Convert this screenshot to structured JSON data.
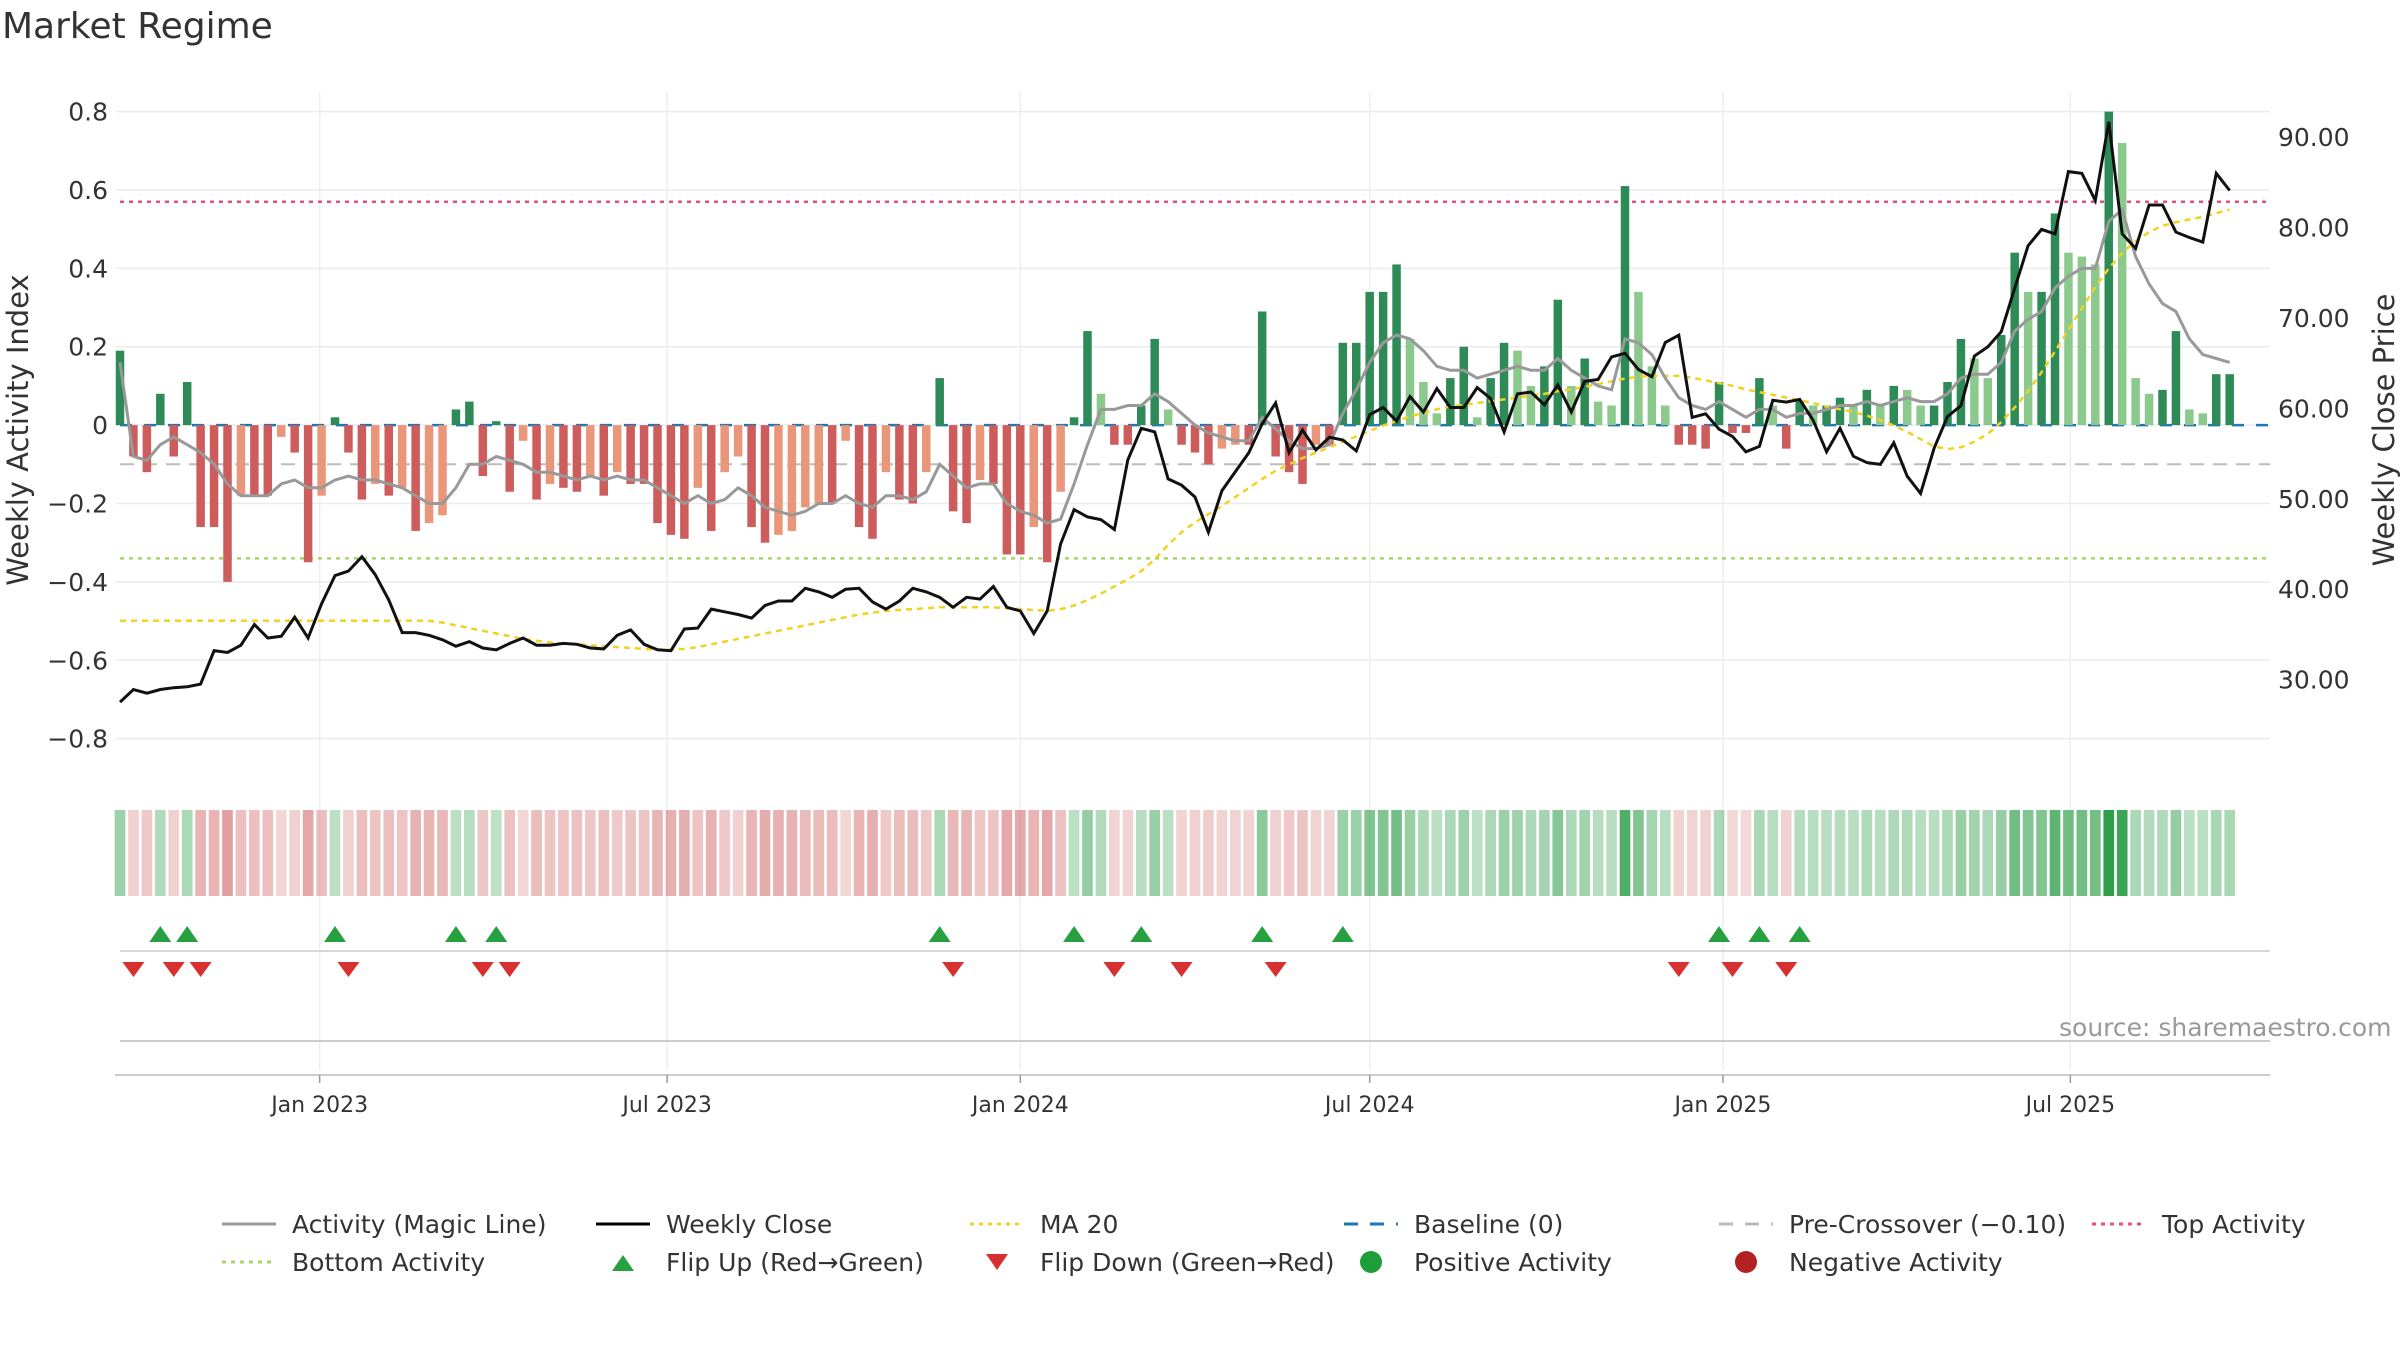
{
  "page": {
    "title": "Market Regime",
    "source_note": "source: sharemaestro.com"
  },
  "chart_data": {
    "type": "bar",
    "title": "Market Regime",
    "left_axis": {
      "label": "Weekly Activity Index",
      "ylim": [
        -0.88,
        0.85
      ],
      "ticks": [
        -0.8,
        -0.6,
        -0.4,
        -0.2,
        0,
        0.2,
        0.4,
        0.6,
        0.8
      ]
    },
    "right_axis": {
      "label": "Weekly Close Price",
      "ylim": [
        20,
        95
      ],
      "ticks": [
        "30.00",
        "40.00",
        "50.00",
        "60.00",
        "70.00",
        "80.00",
        "90.00"
      ]
    },
    "x_axis": {
      "start": "2022-09-19",
      "end": "2025-10-13",
      "tick_labels": [
        "Jan 2023",
        "Jul 2023",
        "Jan 2024",
        "Jul 2024",
        "Jan 2025",
        "Jul 2025"
      ],
      "tick_dates": [
        "2023-01-01",
        "2023-07-01",
        "2024-01-01",
        "2024-07-01",
        "2025-01-01",
        "2025-07-01"
      ]
    },
    "reference_lines": {
      "baseline": 0,
      "pre_crossover": -0.1,
      "top_activity": 0.57,
      "bottom_activity": -0.34
    },
    "activity": [
      0.19,
      -0.08,
      -0.12,
      0.08,
      -0.08,
      0.11,
      -0.26,
      -0.26,
      -0.4,
      -0.18,
      -0.18,
      -0.18,
      -0.03,
      -0.07,
      -0.35,
      -0.18,
      0.02,
      -0.07,
      -0.19,
      -0.15,
      -0.18,
      -0.16,
      -0.27,
      -0.25,
      -0.23,
      0.04,
      0.06,
      -0.13,
      0.01,
      -0.17,
      -0.04,
      -0.19,
      -0.15,
      -0.16,
      -0.17,
      -0.13,
      -0.18,
      -0.12,
      -0.15,
      -0.15,
      -0.25,
      -0.28,
      -0.29,
      -0.16,
      -0.27,
      -0.12,
      -0.08,
      -0.26,
      -0.3,
      -0.28,
      -0.27,
      -0.21,
      -0.2,
      -0.2,
      -0.04,
      -0.26,
      -0.29,
      -0.12,
      -0.19,
      -0.2,
      -0.12,
      0.12,
      -0.22,
      -0.25,
      -0.14,
      -0.15,
      -0.33,
      -0.33,
      -0.26,
      -0.35,
      -0.17,
      0.02,
      0.24,
      0.08,
      -0.05,
      -0.05,
      0.05,
      0.22,
      0.04,
      -0.05,
      -0.07,
      -0.1,
      -0.06,
      -0.05,
      -0.05,
      0.29,
      -0.08,
      -0.12,
      -0.15,
      -0.05,
      -0.05,
      0.21,
      0.21,
      0.34,
      0.34,
      0.41,
      0.22,
      0.11,
      0.03,
      0.12,
      0.2,
      0.02,
      0.12,
      0.21,
      0.19,
      0.1,
      0.15,
      0.32,
      0.1,
      0.17,
      0.06,
      0.05,
      0.61,
      0.34,
      0.15,
      0.05,
      -0.05,
      -0.05,
      -0.06,
      0.11,
      -0.02,
      -0.02,
      0.12,
      0.05,
      -0.06,
      0.06,
      0.05,
      0.05,
      0.07,
      0.05,
      0.09,
      0.05,
      0.1,
      0.09,
      0.05,
      0.05,
      0.11,
      0.22,
      0.17,
      0.12,
      0.23,
      0.44,
      0.34,
      0.34,
      0.54,
      0.44,
      0.43,
      0.41,
      0.8,
      0.72,
      0.12,
      0.08,
      0.09,
      0.24,
      0.04,
      0.03,
      0.13,
      0.13
    ],
    "weekly_close": [
      27.5,
      28.9,
      28.5,
      28.9,
      29.1,
      29.2,
      29.5,
      33.2,
      33,
      33.8,
      36.1,
      34.6,
      34.8,
      36.9,
      34.6,
      38.4,
      41.5,
      42,
      43.6,
      41.6,
      38.8,
      35.2,
      35.2,
      34.9,
      34.4,
      33.7,
      34.2,
      33.5,
      33.3,
      34,
      34.6,
      33.8,
      33.8,
      34,
      33.9,
      33.5,
      33.4,
      34.9,
      35.5,
      33.9,
      33.3,
      33.2,
      35.6,
      35.7,
      37.8,
      37.5,
      37.2,
      36.8,
      38.2,
      38.7,
      38.7,
      40.1,
      39.7,
      39.1,
      40,
      40.1,
      38.6,
      37.8,
      38.7,
      40.1,
      39.7,
      39.1,
      38,
      39.1,
      38.9,
      40.3,
      38,
      37.6,
      35.1,
      37.6,
      45,
      48.8,
      48,
      47.7,
      46.6,
      54.3,
      57.8,
      57.4,
      52.2,
      51.5,
      50.2,
      46.3,
      50.9,
      53,
      55.1,
      58.3,
      60.6,
      55.1,
      57.6,
      55.4,
      56.8,
      56.5,
      55.3,
      59.3,
      60.1,
      58.6,
      61.3,
      59.6,
      62.2,
      60.1,
      60.1,
      62.3,
      61.1,
      57.4,
      61.6,
      61.8,
      60.4,
      62.6,
      59.6,
      63,
      63.2,
      65.7,
      66.1,
      64.3,
      63.5,
      67.3,
      68.1,
      59,
      59.4,
      57.7,
      56.9,
      55.2,
      55.8,
      60.9,
      60.7,
      61,
      58.7,
      55.2,
      57.8,
      54.7,
      54,
      53.8,
      56.2,
      52.5,
      50.6,
      55.6,
      59.1,
      60.3,
      65.8,
      66.8,
      68.5,
      73.3,
      78,
      79.8,
      79.3,
      86.2,
      86,
      83,
      91.7,
      79.3,
      77.7,
      82.5,
      82.5,
      79.5,
      78.9,
      78.4,
      86,
      84.1
    ],
    "magic_line": [
      0.16,
      -0.08,
      -0.09,
      -0.05,
      -0.03,
      -0.05,
      -0.07,
      -0.1,
      -0.15,
      -0.18,
      -0.18,
      -0.18,
      -0.15,
      -0.14,
      -0.16,
      -0.16,
      -0.14,
      -0.13,
      -0.14,
      -0.14,
      -0.15,
      -0.16,
      -0.18,
      -0.2,
      -0.2,
      -0.16,
      -0.1,
      -0.1,
      -0.08,
      -0.09,
      -0.1,
      -0.12,
      -0.12,
      -0.13,
      -0.14,
      -0.13,
      -0.14,
      -0.13,
      -0.14,
      -0.14,
      -0.16,
      -0.18,
      -0.2,
      -0.18,
      -0.2,
      -0.19,
      -0.16,
      -0.18,
      -0.21,
      -0.22,
      -0.23,
      -0.22,
      -0.2,
      -0.2,
      -0.18,
      -0.2,
      -0.21,
      -0.18,
      -0.18,
      -0.19,
      -0.17,
      -0.1,
      -0.13,
      -0.16,
      -0.15,
      -0.15,
      -0.2,
      -0.22,
      -0.23,
      -0.25,
      -0.24,
      -0.15,
      -0.05,
      0.04,
      0.04,
      0.05,
      0.05,
      0.08,
      0.06,
      0.03,
      0,
      -0.02,
      -0.03,
      -0.04,
      -0.04,
      0.02,
      -0.01,
      -0.04,
      -0.06,
      -0.06,
      -0.05,
      0.03,
      0.09,
      0.16,
      0.21,
      0.23,
      0.22,
      0.19,
      0.15,
      0.14,
      0.14,
      0.12,
      0.13,
      0.14,
      0.15,
      0.14,
      0.14,
      0.17,
      0.14,
      0.12,
      0.1,
      0.09,
      0.22,
      0.21,
      0.18,
      0.12,
      0.07,
      0.05,
      0.04,
      0.06,
      0.04,
      0.02,
      0.04,
      0.04,
      0.02,
      0.03,
      0.03,
      0.04,
      0.05,
      0.05,
      0.06,
      0.05,
      0.06,
      0.07,
      0.06,
      0.06,
      0.08,
      0.12,
      0.13,
      0.13,
      0.16,
      0.24,
      0.27,
      0.29,
      0.35,
      0.38,
      0.4,
      0.4,
      0.52,
      0.55,
      0.43,
      0.36,
      0.31,
      0.29,
      0.22,
      0.18,
      0.17,
      0.16
    ],
    "ma20": [
      36.5,
      36.5,
      36.5,
      36.5,
      36.5,
      36.5,
      36.5,
      36.5,
      36.5,
      36.5,
      36.5,
      36.5,
      36.5,
      36.5,
      36.5,
      36.5,
      36.5,
      36.5,
      36.5,
      36.5,
      36.5,
      36.5,
      36.5,
      36.5,
      36.3,
      36,
      35.7,
      35.4,
      35.1,
      34.8,
      34.5,
      34.3,
      34.1,
      34,
      33.9,
      33.8,
      33.7,
      33.6,
      33.5,
      33.4,
      33.3,
      33.3,
      33.4,
      33.6,
      33.9,
      34.2,
      34.5,
      34.8,
      35.1,
      35.4,
      35.7,
      36,
      36.3,
      36.6,
      36.9,
      37.2,
      37.4,
      37.6,
      37.7,
      37.8,
      37.9,
      38,
      38,
      38,
      38,
      38,
      37.9,
      37.8,
      37.7,
      37.6,
      37.8,
      38.2,
      38.8,
      39.5,
      40.3,
      41.1,
      42,
      43.3,
      44.9,
      46.3,
      47.4,
      48.3,
      49.2,
      50.2,
      51.2,
      52.2,
      53.1,
      53.8,
      54.5,
      55.1,
      55.7,
      56.3,
      56.9,
      57.5,
      58.1,
      58.6,
      59.1,
      59.5,
      59.9,
      60.2,
      60.4,
      60.6,
      60.8,
      61,
      61.2,
      61.4,
      61.6,
      61.9,
      62.1,
      62.4,
      62.7,
      63,
      63.3,
      63.5,
      63.6,
      63.6,
      63.6,
      63.4,
      63.1,
      62.8,
      62.5,
      62.1,
      61.8,
      61.5,
      61.2,
      60.9,
      60.6,
      60.2,
      59.9,
      59.6,
      59.2,
      58.7,
      58.1,
      57.4,
      56.6,
      55.8,
      55.5,
      55.7,
      56.3,
      57.2,
      58.5,
      60.1,
      61.9,
      64,
      66.3,
      68.7,
      71.1,
      73.4,
      75.5,
      77.2,
      78.5,
      79.5,
      80.2,
      80.6,
      80.9,
      81.2,
      81.6,
      82
    ]
  },
  "legend": {
    "items": [
      {
        "label": "Activity (Magic Line)",
        "kind": "line",
        "color": "#999999"
      },
      {
        "label": "Weekly Close",
        "kind": "line",
        "color": "#000000"
      },
      {
        "label": "MA 20",
        "kind": "dotted",
        "color": "#f0d320"
      },
      {
        "label": "Baseline (0)",
        "kind": "dashed",
        "color": "#1f77b4"
      },
      {
        "label": "Pre-Crossover (−0.10)",
        "kind": "dashed",
        "color": "#bbbbbb"
      },
      {
        "label": "Top Activity",
        "kind": "dotted",
        "color": "#e0517c"
      },
      {
        "label": "Bottom Activity",
        "kind": "dotted",
        "color": "#aad36a"
      },
      {
        "label": "Flip Up (Red→Green)",
        "kind": "tri-up",
        "color": "#27a040"
      },
      {
        "label": "Flip Down (Green→Red)",
        "kind": "tri-down",
        "color": "#d63030"
      },
      {
        "label": "Positive Activity",
        "kind": "dot",
        "color": "#1e9e3a"
      },
      {
        "label": "Negative Activity",
        "kind": "dot",
        "color": "#b22222"
      }
    ]
  },
  "colors": {
    "pos_strong": "#2e8b57",
    "pos_light": "#8cc98c",
    "neg_strong": "#cd5c5c",
    "neg_light": "#e9967a",
    "flip_up": "#27a040",
    "flip_down": "#d63030"
  }
}
